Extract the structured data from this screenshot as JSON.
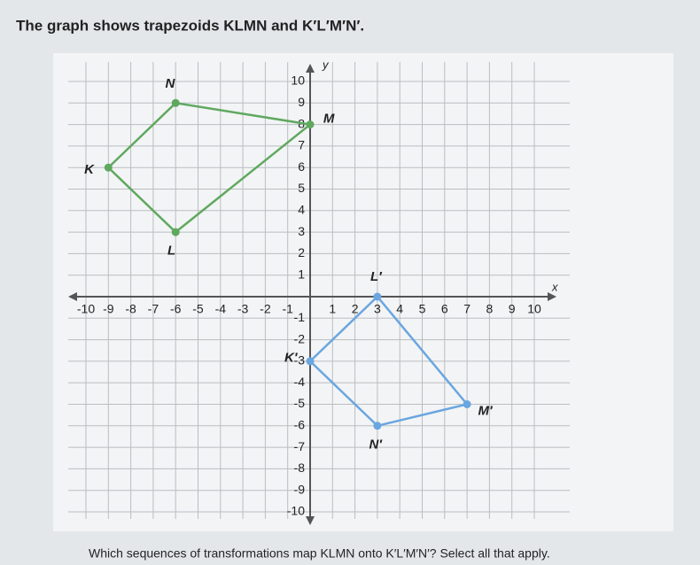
{
  "chart_data": {
    "type": "polygon",
    "title": "The graph shows trapezoids KLMN and K′L′M′N′.",
    "footer": "Which sequences of transformations map KLMN onto K′L′M′N′? Select all that apply.",
    "x_label": "x",
    "y_label": "y",
    "xlim": [
      -10,
      10
    ],
    "ylim": [
      -10,
      10
    ],
    "xticks": [
      -10,
      -9,
      -8,
      -7,
      -6,
      -5,
      -4,
      -3,
      -2,
      -1,
      1,
      2,
      3,
      4,
      5,
      6,
      7,
      8,
      9,
      10
    ],
    "yticks": [
      -10,
      -9,
      -8,
      -7,
      -6,
      -5,
      -4,
      -3,
      -2,
      -1,
      1,
      2,
      3,
      4,
      5,
      6,
      7,
      8,
      9,
      10
    ],
    "grid": true,
    "series": [
      {
        "color": "#5fa85f",
        "x": [
          -9,
          -6,
          0,
          -6
        ],
        "y": [
          6,
          3,
          8,
          9
        ],
        "point_labels": [
          "K",
          "L",
          "M",
          "N"
        ]
      },
      {
        "color": "#6aa6e0",
        "x": [
          0,
          3,
          7,
          3
        ],
        "y": [
          -3,
          0,
          -5,
          -6
        ],
        "point_labels": [
          "K′",
          "L′",
          "M′",
          "N′"
        ]
      }
    ]
  }
}
